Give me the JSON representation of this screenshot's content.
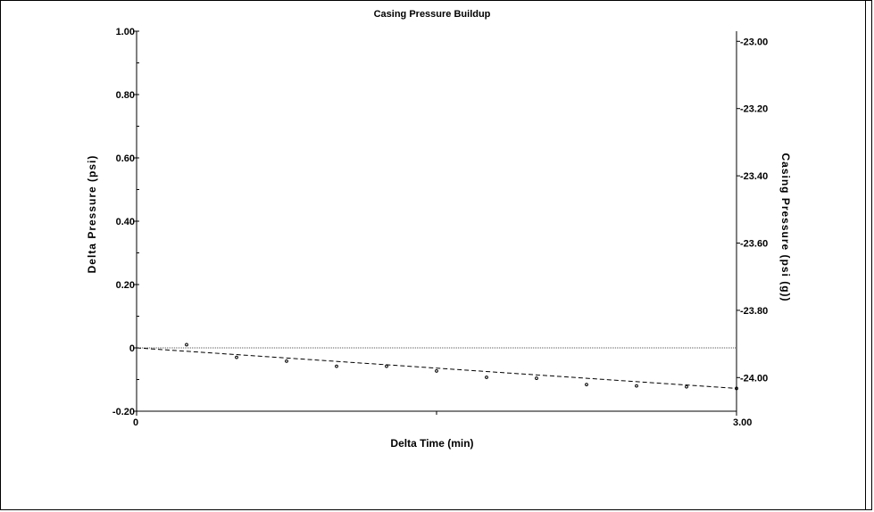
{
  "chart_data": {
    "type": "scatter",
    "title": "Casing Pressure Buildup",
    "xlabel": "Delta Time (min)",
    "ylabel": "Delta Pressure (psi)",
    "y2label": "Casing Pressure (psi (g))",
    "xlim": [
      0,
      3.0
    ],
    "ylim": [
      -0.2,
      1.0
    ],
    "y2lim": [
      -24.1,
      -22.97
    ],
    "x_ticks": [
      {
        "value": 0,
        "label": "0"
      },
      {
        "value": 3.0,
        "label": "3.00"
      }
    ],
    "x_minor_ticks": [
      1.5
    ],
    "y_ticks": [
      {
        "value": 1.0,
        "label": "1.00"
      },
      {
        "value": 0.8,
        "label": "0.80"
      },
      {
        "value": 0.6,
        "label": "0.60"
      },
      {
        "value": 0.4,
        "label": "0.40"
      },
      {
        "value": 0.2,
        "label": "0.20"
      },
      {
        "value": 0,
        "label": "0"
      },
      {
        "value": -0.2,
        "label": "-0.20"
      }
    ],
    "y2_ticks": [
      {
        "value": -23.0,
        "label": "-23.00"
      },
      {
        "value": -23.2,
        "label": "-23.20"
      },
      {
        "value": -23.4,
        "label": "-23.40"
      },
      {
        "value": -23.6,
        "label": "-23.60"
      },
      {
        "value": -23.8,
        "label": "-23.80"
      },
      {
        "value": -24.0,
        "label": "-24.00"
      }
    ],
    "series": [
      {
        "style": "points",
        "x": [
          0.25,
          0.5,
          0.75,
          1.0,
          1.25,
          1.5,
          1.75,
          2.0,
          2.25,
          2.5,
          2.75,
          3.0
        ],
        "y": [
          0.01,
          -0.03,
          -0.042,
          -0.058,
          -0.058,
          -0.073,
          -0.093,
          -0.096,
          -0.116,
          -0.12,
          -0.123,
          -0.128
        ]
      },
      {
        "style": "dashed-line",
        "x": [
          0,
          3.0
        ],
        "y": [
          0,
          -0.128
        ]
      }
    ],
    "reference_line": {
      "y": 0,
      "style": "dotted"
    },
    "grid": false,
    "legend": "none"
  }
}
